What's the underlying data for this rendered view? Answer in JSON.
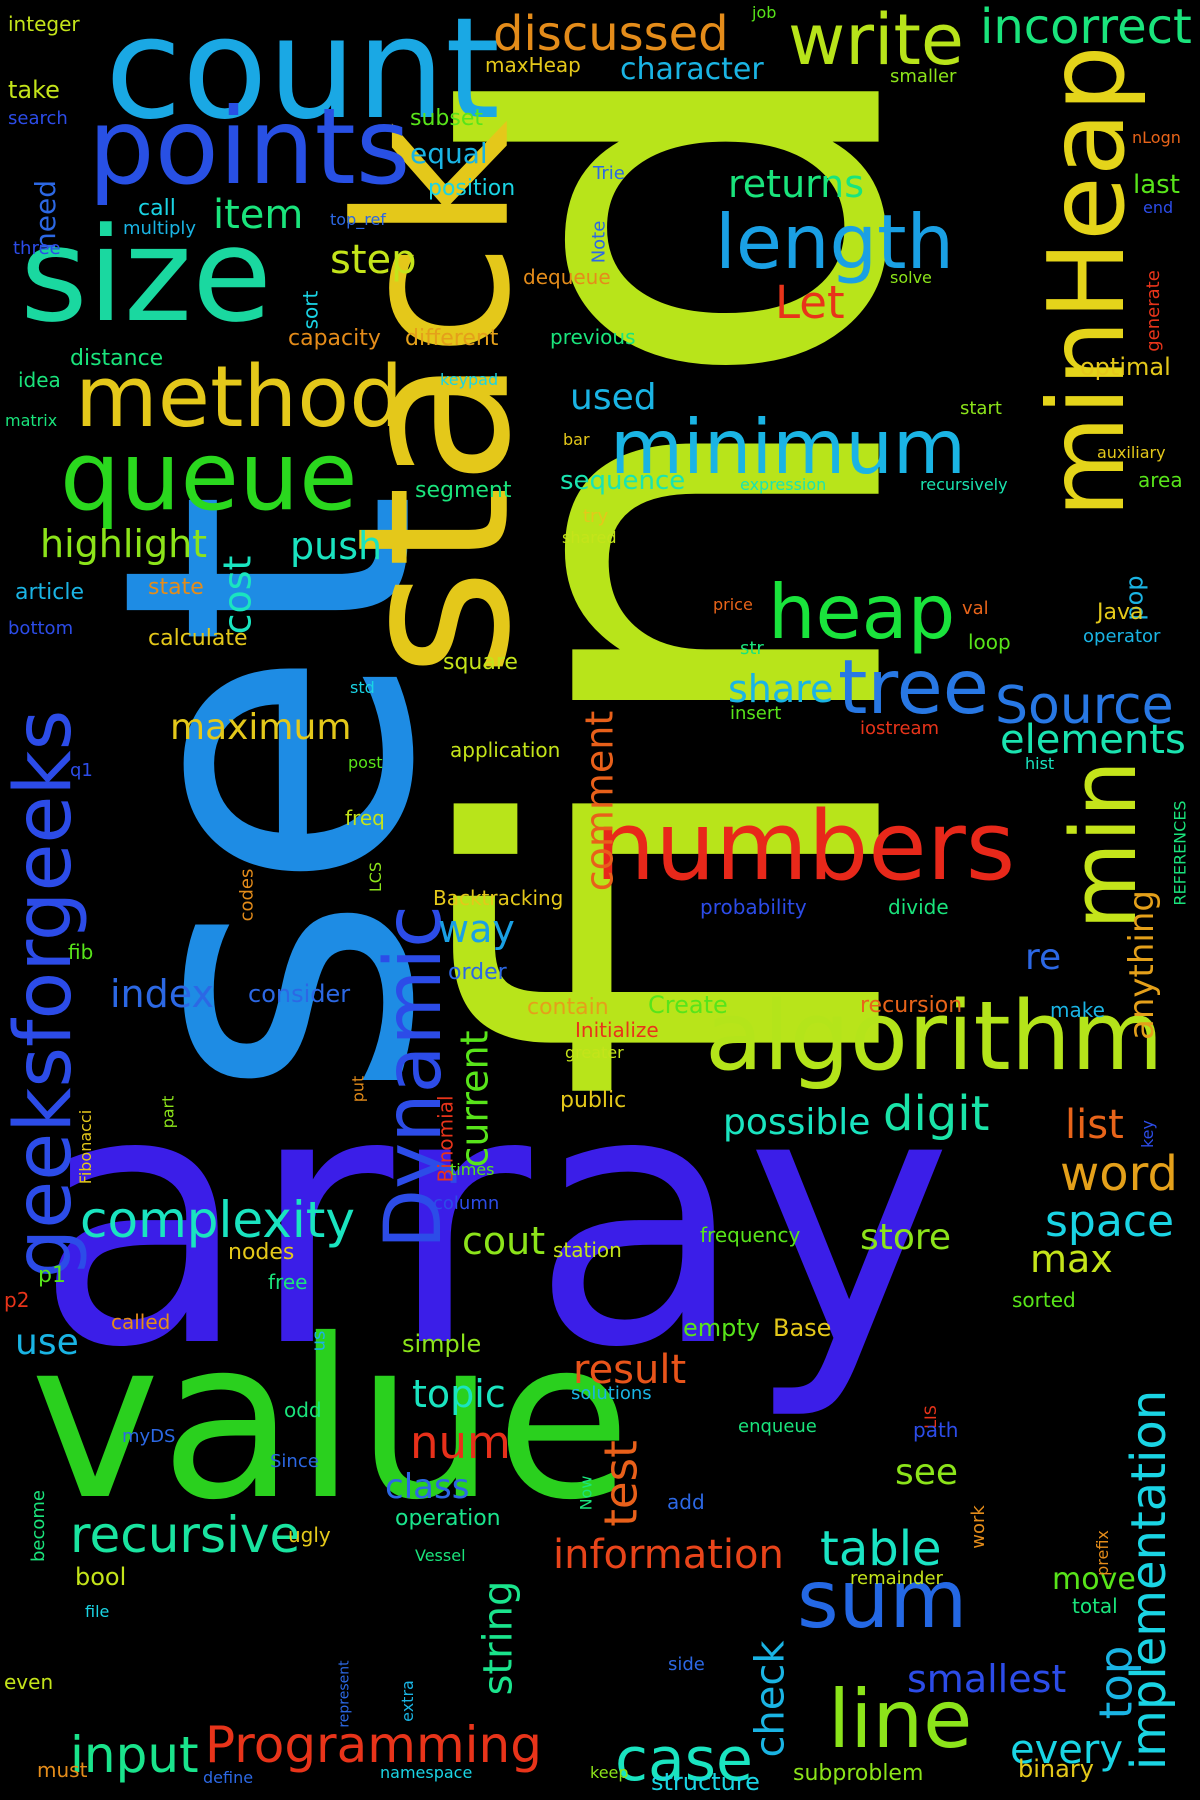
{
  "words": [
    {
      "text": "find",
      "color": "#b8e41a",
      "rotate": -90
    },
    {
      "text": "array",
      "color": "#3b1ee8",
      "rotate": 0
    },
    {
      "text": "set",
      "color": "#1e8ce4",
      "rotate": -90
    },
    {
      "text": "stack",
      "color": "#e4c81a",
      "rotate": -90
    },
    {
      "text": "value",
      "color": "#2ad01e",
      "rotate": 0
    },
    {
      "text": "count",
      "color": "#1aa8e4",
      "rotate": 0
    },
    {
      "text": "size",
      "color": "#1ad8a0",
      "rotate": 0
    },
    {
      "text": "points",
      "color": "#2850e4",
      "rotate": 0
    },
    {
      "text": "minHeap",
      "color": "#e4d41a",
      "rotate": -90
    },
    {
      "text": "numbers",
      "color": "#e8281a",
      "rotate": 0
    },
    {
      "text": "algorithm",
      "color": "#b4e41a",
      "rotate": 0
    },
    {
      "text": "queue",
      "color": "#2ad81e",
      "rotate": 0
    },
    {
      "text": "method",
      "color": "#e4c81a",
      "rotate": 0
    },
    {
      "text": "minimum",
      "color": "#1ab4e4",
      "rotate": 0
    },
    {
      "text": "length",
      "color": "#1aa0e4",
      "rotate": 0
    },
    {
      "text": "heap",
      "color": "#1ae43c",
      "rotate": 0
    },
    {
      "text": "tree",
      "color": "#2878e4",
      "rotate": 0
    },
    {
      "text": "min",
      "color": "#c4e41a",
      "rotate": -90
    },
    {
      "text": "write",
      "color": "#b8e41a",
      "rotate": 0
    },
    {
      "text": "incorrect",
      "color": "#1ae47c",
      "rotate": 0
    },
    {
      "text": "discussed",
      "color": "#e48c1a",
      "rotate": 0
    },
    {
      "text": "geeksforgeeks",
      "color": "#2c4ce8",
      "rotate": -90
    },
    {
      "text": "Dynamic",
      "color": "#2c4ce8",
      "rotate": -90
    },
    {
      "text": "Programming",
      "color": "#e8341a",
      "rotate": 0
    },
    {
      "text": "sum",
      "color": "#2468e4",
      "rotate": 0
    },
    {
      "text": "line",
      "color": "#8ce41a",
      "rotate": 0
    },
    {
      "text": "complexity",
      "color": "#1ae4c0",
      "rotate": 0
    },
    {
      "text": "recursive",
      "color": "#1ae4a0",
      "rotate": 0
    },
    {
      "text": "input",
      "color": "#1ae48c",
      "rotate": 0
    },
    {
      "text": "case",
      "color": "#1ae4c0",
      "rotate": 0
    },
    {
      "text": "implementation",
      "color": "#1ad4e4",
      "rotate": -90
    },
    {
      "text": "Source",
      "color": "#2878e4",
      "rotate": 0
    },
    {
      "text": "elements",
      "color": "#1ae4b0",
      "rotate": 0
    },
    {
      "text": "digit",
      "color": "#1ae4a8",
      "rotate": 0
    },
    {
      "text": "word",
      "color": "#e4a01a",
      "rotate": 0
    },
    {
      "text": "space",
      "color": "#1ad4e4",
      "rotate": 0
    },
    {
      "text": "table",
      "color": "#1ae4c4",
      "rotate": 0
    },
    {
      "text": "information",
      "color": "#e8441a",
      "rotate": 0
    },
    {
      "text": "test",
      "color": "#e8601a",
      "rotate": -90
    },
    {
      "text": "num",
      "color": "#e8301a",
      "rotate": 0
    },
    {
      "text": "result",
      "color": "#e8541a",
      "rotate": 0
    },
    {
      "text": "top",
      "color": "#1ab4e4",
      "rotate": -90
    },
    {
      "text": "every",
      "color": "#1ad4e4",
      "rotate": 0
    },
    {
      "text": "smallest",
      "color": "#2c4ce8",
      "rotate": 0
    },
    {
      "text": "string",
      "color": "#1ae48c",
      "rotate": -90
    },
    {
      "text": "check",
      "color": "#1ab4e4",
      "rotate": -90
    },
    {
      "text": "item",
      "color": "#1ae47c",
      "rotate": 0
    },
    {
      "text": "step",
      "color": "#c4e41a",
      "rotate": 0
    },
    {
      "text": "returns",
      "color": "#1ae47c",
      "rotate": 0
    },
    {
      "text": "Let",
      "color": "#e8341a",
      "rotate": 0
    },
    {
      "text": "highlight",
      "color": "#8ce41a",
      "rotate": 0
    },
    {
      "text": "cost",
      "color": "#1ae4c0",
      "rotate": -90
    },
    {
      "text": "push",
      "color": "#1ae4c0",
      "rotate": 0
    },
    {
      "text": "maximum",
      "color": "#e4c81a",
      "rotate": 0
    },
    {
      "text": "comment",
      "color": "#e8601a",
      "rotate": -90
    },
    {
      "text": "share",
      "color": "#1ab4e4",
      "rotate": 0
    },
    {
      "text": "index",
      "color": "#2c68e4",
      "rotate": 0
    },
    {
      "text": "way",
      "color": "#1aa0e4",
      "rotate": 0
    },
    {
      "text": "current",
      "color": "#58e41a",
      "rotate": -90
    },
    {
      "text": "possible",
      "color": "#1ae4c0",
      "rotate": 0
    },
    {
      "text": "list",
      "color": "#e8641a",
      "rotate": 0
    },
    {
      "text": "cout",
      "color": "#8ce41a",
      "rotate": 0
    },
    {
      "text": "store",
      "color": "#8ce41a",
      "rotate": 0
    },
    {
      "text": "max",
      "color": "#c4e41a",
      "rotate": 0
    },
    {
      "text": "topic",
      "color": "#1ae4c0",
      "rotate": 0
    },
    {
      "text": "class",
      "color": "#2c68e4",
      "rotate": 0
    },
    {
      "text": "see",
      "color": "#8ce41a",
      "rotate": 0
    },
    {
      "text": "used",
      "color": "#1ab4e4",
      "rotate": 0
    },
    {
      "text": "sequence",
      "color": "#1ae4b0",
      "rotate": 0
    },
    {
      "text": "re",
      "color": "#2c68e4",
      "rotate": 0
    },
    {
      "text": "anything",
      "color": "#e4a01a",
      "rotate": -90
    },
    {
      "text": "move",
      "color": "#58e41a",
      "rotate": 0
    },
    {
      "text": "use",
      "color": "#1ab4e4",
      "rotate": 0
    },
    {
      "text": "character",
      "color": "#1ab4e4",
      "rotate": 0
    },
    {
      "text": "equal",
      "color": "#1ab4e4",
      "rotate": 0
    },
    {
      "text": "need",
      "color": "#2c68e4",
      "rotate": -90
    },
    {
      "text": "take",
      "color": "#c4e41a",
      "rotate": 0
    },
    {
      "text": "last",
      "color": "#58e41a",
      "rotate": 0
    },
    {
      "text": "optimal",
      "color": "#e4c81a",
      "rotate": 0
    },
    {
      "text": "pop",
      "color": "#1ab4e4",
      "rotate": -90
    },
    {
      "text": "Java",
      "color": "#e4c81a",
      "rotate": 0
    },
    {
      "text": "state",
      "color": "#e48c1a",
      "rotate": 0
    },
    {
      "text": "article",
      "color": "#1ab4e4",
      "rotate": 0
    },
    {
      "text": "calculate",
      "color": "#e4c81a",
      "rotate": 0
    },
    {
      "text": "square",
      "color": "#c4e41a",
      "rotate": 0
    },
    {
      "text": "consider",
      "color": "#2c68e4",
      "rotate": 0
    },
    {
      "text": "order",
      "color": "#2c68e4",
      "rotate": 0
    },
    {
      "text": "contain",
      "color": "#e4a01a",
      "rotate": 0
    },
    {
      "text": "Create",
      "color": "#58e41a",
      "rotate": 0
    },
    {
      "text": "recursion",
      "color": "#e8641a",
      "rotate": 0
    },
    {
      "text": "nodes",
      "color": "#e4c81a",
      "rotate": 0
    },
    {
      "text": "simple",
      "color": "#8ce41a",
      "rotate": 0
    },
    {
      "text": "empty",
      "color": "#58e41a",
      "rotate": 0
    },
    {
      "text": "Base",
      "color": "#e4c81a",
      "rotate": 0
    },
    {
      "text": "bool",
      "color": "#c4e41a",
      "rotate": 0
    },
    {
      "text": "binary",
      "color": "#e4c81a",
      "rotate": 0
    },
    {
      "text": "subproblem",
      "color": "#8ce41a",
      "rotate": 0
    },
    {
      "text": "structure",
      "color": "#1ad4e4",
      "rotate": 0
    },
    {
      "text": "operation",
      "color": "#1ae48c",
      "rotate": 0
    },
    {
      "text": "distance",
      "color": "#1ae47c",
      "rotate": 0
    },
    {
      "text": "capacity",
      "color": "#e48c1a",
      "rotate": 0
    },
    {
      "text": "different",
      "color": "#e4a01a",
      "rotate": 0
    },
    {
      "text": "segment",
      "color": "#1ae47c",
      "rotate": 0
    },
    {
      "text": "position",
      "color": "#1ad4e4",
      "rotate": 0
    },
    {
      "text": "subset",
      "color": "#58e41a",
      "rotate": 0
    },
    {
      "text": "maxHeap",
      "color": "#e4c81a",
      "rotate": 0
    },
    {
      "text": "call",
      "color": "#1ad4e4",
      "rotate": 0
    },
    {
      "text": "sort",
      "color": "#1ad4e4",
      "rotate": -90
    },
    {
      "text": "dequeue",
      "color": "#e48c1a",
      "rotate": 0
    },
    {
      "text": "integer",
      "color": "#c4e41a",
      "rotate": 0
    },
    {
      "text": "search",
      "color": "#2c4ce8",
      "rotate": 0
    },
    {
      "text": "three",
      "color": "#2c4ce8",
      "rotate": 0
    },
    {
      "text": "multiply",
      "color": "#1ab4e4",
      "rotate": 0
    },
    {
      "text": "top_ref",
      "color": "#2c68e4",
      "rotate": 0
    },
    {
      "text": "Note",
      "color": "#2c68e4",
      "rotate": -90
    },
    {
      "text": "Trie",
      "color": "#2c68e4",
      "rotate": 0
    },
    {
      "text": "job",
      "color": "#58e41a",
      "rotate": 0
    },
    {
      "text": "smaller",
      "color": "#8ce41a",
      "rotate": 0
    },
    {
      "text": "nLogn",
      "color": "#e8641a",
      "rotate": 0
    },
    {
      "text": "end",
      "color": "#2c4ce8",
      "rotate": 0
    },
    {
      "text": "generate",
      "color": "#e8341a",
      "rotate": -90
    },
    {
      "text": "solve",
      "color": "#8ce41a",
      "rotate": 0
    },
    {
      "text": "previous",
      "color": "#1ae47c",
      "rotate": 0
    },
    {
      "text": "idea",
      "color": "#1ae47c",
      "rotate": 0
    },
    {
      "text": "keypad",
      "color": "#1ad4e4",
      "rotate": 0
    },
    {
      "text": "matrix",
      "color": "#1ae47c",
      "rotate": 0
    },
    {
      "text": "start",
      "color": "#8ce41a",
      "rotate": 0
    },
    {
      "text": "bar",
      "color": "#e4c81a",
      "rotate": 0
    },
    {
      "text": "auxiliary",
      "color": "#e4c81a",
      "rotate": 0
    },
    {
      "text": "area",
      "color": "#58e41a",
      "rotate": 0
    },
    {
      "text": "expression",
      "color": "#1ae4b0",
      "rotate": 0
    },
    {
      "text": "recursively",
      "color": "#1ae4b0",
      "rotate": 0
    },
    {
      "text": "try",
      "color": "#e4c81a",
      "rotate": 0
    },
    {
      "text": "shared",
      "color": "#c4e41a",
      "rotate": 0
    },
    {
      "text": "price",
      "color": "#e8641a",
      "rotate": 0
    },
    {
      "text": "val",
      "color": "#e8641a",
      "rotate": 0
    },
    {
      "text": "bottom",
      "color": "#2c4ce8",
      "rotate": 0
    },
    {
      "text": "loop",
      "color": "#58e41a",
      "rotate": 0
    },
    {
      "text": "operator",
      "color": "#1ab4e4",
      "rotate": 0
    },
    {
      "text": "str",
      "color": "#1ae47c",
      "rotate": 0
    },
    {
      "text": "std",
      "color": "#1ad4e4",
      "rotate": 0
    },
    {
      "text": "insert",
      "color": "#58e41a",
      "rotate": 0
    },
    {
      "text": "iostream",
      "color": "#e8341a",
      "rotate": 0
    },
    {
      "text": "hist",
      "color": "#1ae4c0",
      "rotate": 0
    },
    {
      "text": "REFERENCES",
      "color": "#1ae47c",
      "rotate": -90
    },
    {
      "text": "post",
      "color": "#58e41a",
      "rotate": 0
    },
    {
      "text": "application",
      "color": "#c4e41a",
      "rotate": 0
    },
    {
      "text": "q1",
      "color": "#2c4ce8",
      "rotate": 0
    },
    {
      "text": "freq",
      "color": "#c4e41a",
      "rotate": 0
    },
    {
      "text": "LCS",
      "color": "#8ce41a",
      "rotate": -90
    },
    {
      "text": "codes",
      "color": "#e48c1a",
      "rotate": -90
    },
    {
      "text": "Backtracking",
      "color": "#e4c81a",
      "rotate": 0
    },
    {
      "text": "probability",
      "color": "#2c4ce8",
      "rotate": 0
    },
    {
      "text": "divide",
      "color": "#1ae47c",
      "rotate": 0
    },
    {
      "text": "fib",
      "color": "#58e41a",
      "rotate": 0
    },
    {
      "text": "Initialize",
      "color": "#e8341a",
      "rotate": 0
    },
    {
      "text": "make",
      "color": "#1ab4e4",
      "rotate": 0
    },
    {
      "text": "greater",
      "color": "#c4e41a",
      "rotate": 0
    },
    {
      "text": "Binomial",
      "color": "#e8341a",
      "rotate": -90
    },
    {
      "text": "put",
      "color": "#e48c1a",
      "rotate": -90
    },
    {
      "text": "part",
      "color": "#8ce41a",
      "rotate": -90
    },
    {
      "text": "Fibonacci",
      "color": "#e4c81a",
      "rotate": -90
    },
    {
      "text": "public",
      "color": "#e4c81a",
      "rotate": 0
    },
    {
      "text": "key",
      "color": "#2c4ce8",
      "rotate": -90
    },
    {
      "text": "times",
      "color": "#58e41a",
      "rotate": 0
    },
    {
      "text": "column",
      "color": "#2c4ce8",
      "rotate": 0
    },
    {
      "text": "frequency",
      "color": "#58e41a",
      "rotate": 0
    },
    {
      "text": "station",
      "color": "#c4e41a",
      "rotate": 0
    },
    {
      "text": "p1",
      "color": "#58e41a",
      "rotate": 0
    },
    {
      "text": "p2",
      "color": "#e8341a",
      "rotate": 0
    },
    {
      "text": "free",
      "color": "#1ae47c",
      "rotate": 0
    },
    {
      "text": "called",
      "color": "#e48c1a",
      "rotate": 0
    },
    {
      "text": "us",
      "color": "#1ab4e4",
      "rotate": -90
    },
    {
      "text": "sorted",
      "color": "#58e41a",
      "rotate": 0
    },
    {
      "text": "odd",
      "color": "#1ae47c",
      "rotate": 0
    },
    {
      "text": "solutions",
      "color": "#1ab4e4",
      "rotate": 0
    },
    {
      "text": "enqueue",
      "color": "#1ae47c",
      "rotate": 0
    },
    {
      "text": "LIS",
      "color": "#e8341a",
      "rotate": -90
    },
    {
      "text": "path",
      "color": "#2c4ce8",
      "rotate": 0
    },
    {
      "text": "myDS",
      "color": "#2c68e4",
      "rotate": 0
    },
    {
      "text": "Since",
      "color": "#2c68e4",
      "rotate": 0
    },
    {
      "text": "become",
      "color": "#1ae47c",
      "rotate": -90
    },
    {
      "text": "Now",
      "color": "#1ae47c",
      "rotate": -90
    },
    {
      "text": "add",
      "color": "#2c68e4",
      "rotate": 0
    },
    {
      "text": "work",
      "color": "#e48c1a",
      "rotate": -90
    },
    {
      "text": "prefix",
      "color": "#e48c1a",
      "rotate": -90
    },
    {
      "text": "ugly",
      "color": "#e4c81a",
      "rotate": 0
    },
    {
      "text": "Vessel",
      "color": "#1ae47c",
      "rotate": 0
    },
    {
      "text": "remainder",
      "color": "#c4e41a",
      "rotate": 0
    },
    {
      "text": "total",
      "color": "#1ae47c",
      "rotate": 0
    },
    {
      "text": "file",
      "color": "#1ad4e4",
      "rotate": 0
    },
    {
      "text": "represent",
      "color": "#2c68e4",
      "rotate": -90
    },
    {
      "text": "extra",
      "color": "#1ab4e4",
      "rotate": -90
    },
    {
      "text": "even",
      "color": "#c4e41a",
      "rotate": 0
    },
    {
      "text": "side",
      "color": "#2c68e4",
      "rotate": 0
    },
    {
      "text": "must",
      "color": "#e48c1a",
      "rotate": 0
    },
    {
      "text": "define",
      "color": "#2c68e4",
      "rotate": 0
    },
    {
      "text": "namespace",
      "color": "#1ad4e4",
      "rotate": 0
    },
    {
      "text": "keep",
      "color": "#8ce41a",
      "rotate": 0
    }
  ]
}
